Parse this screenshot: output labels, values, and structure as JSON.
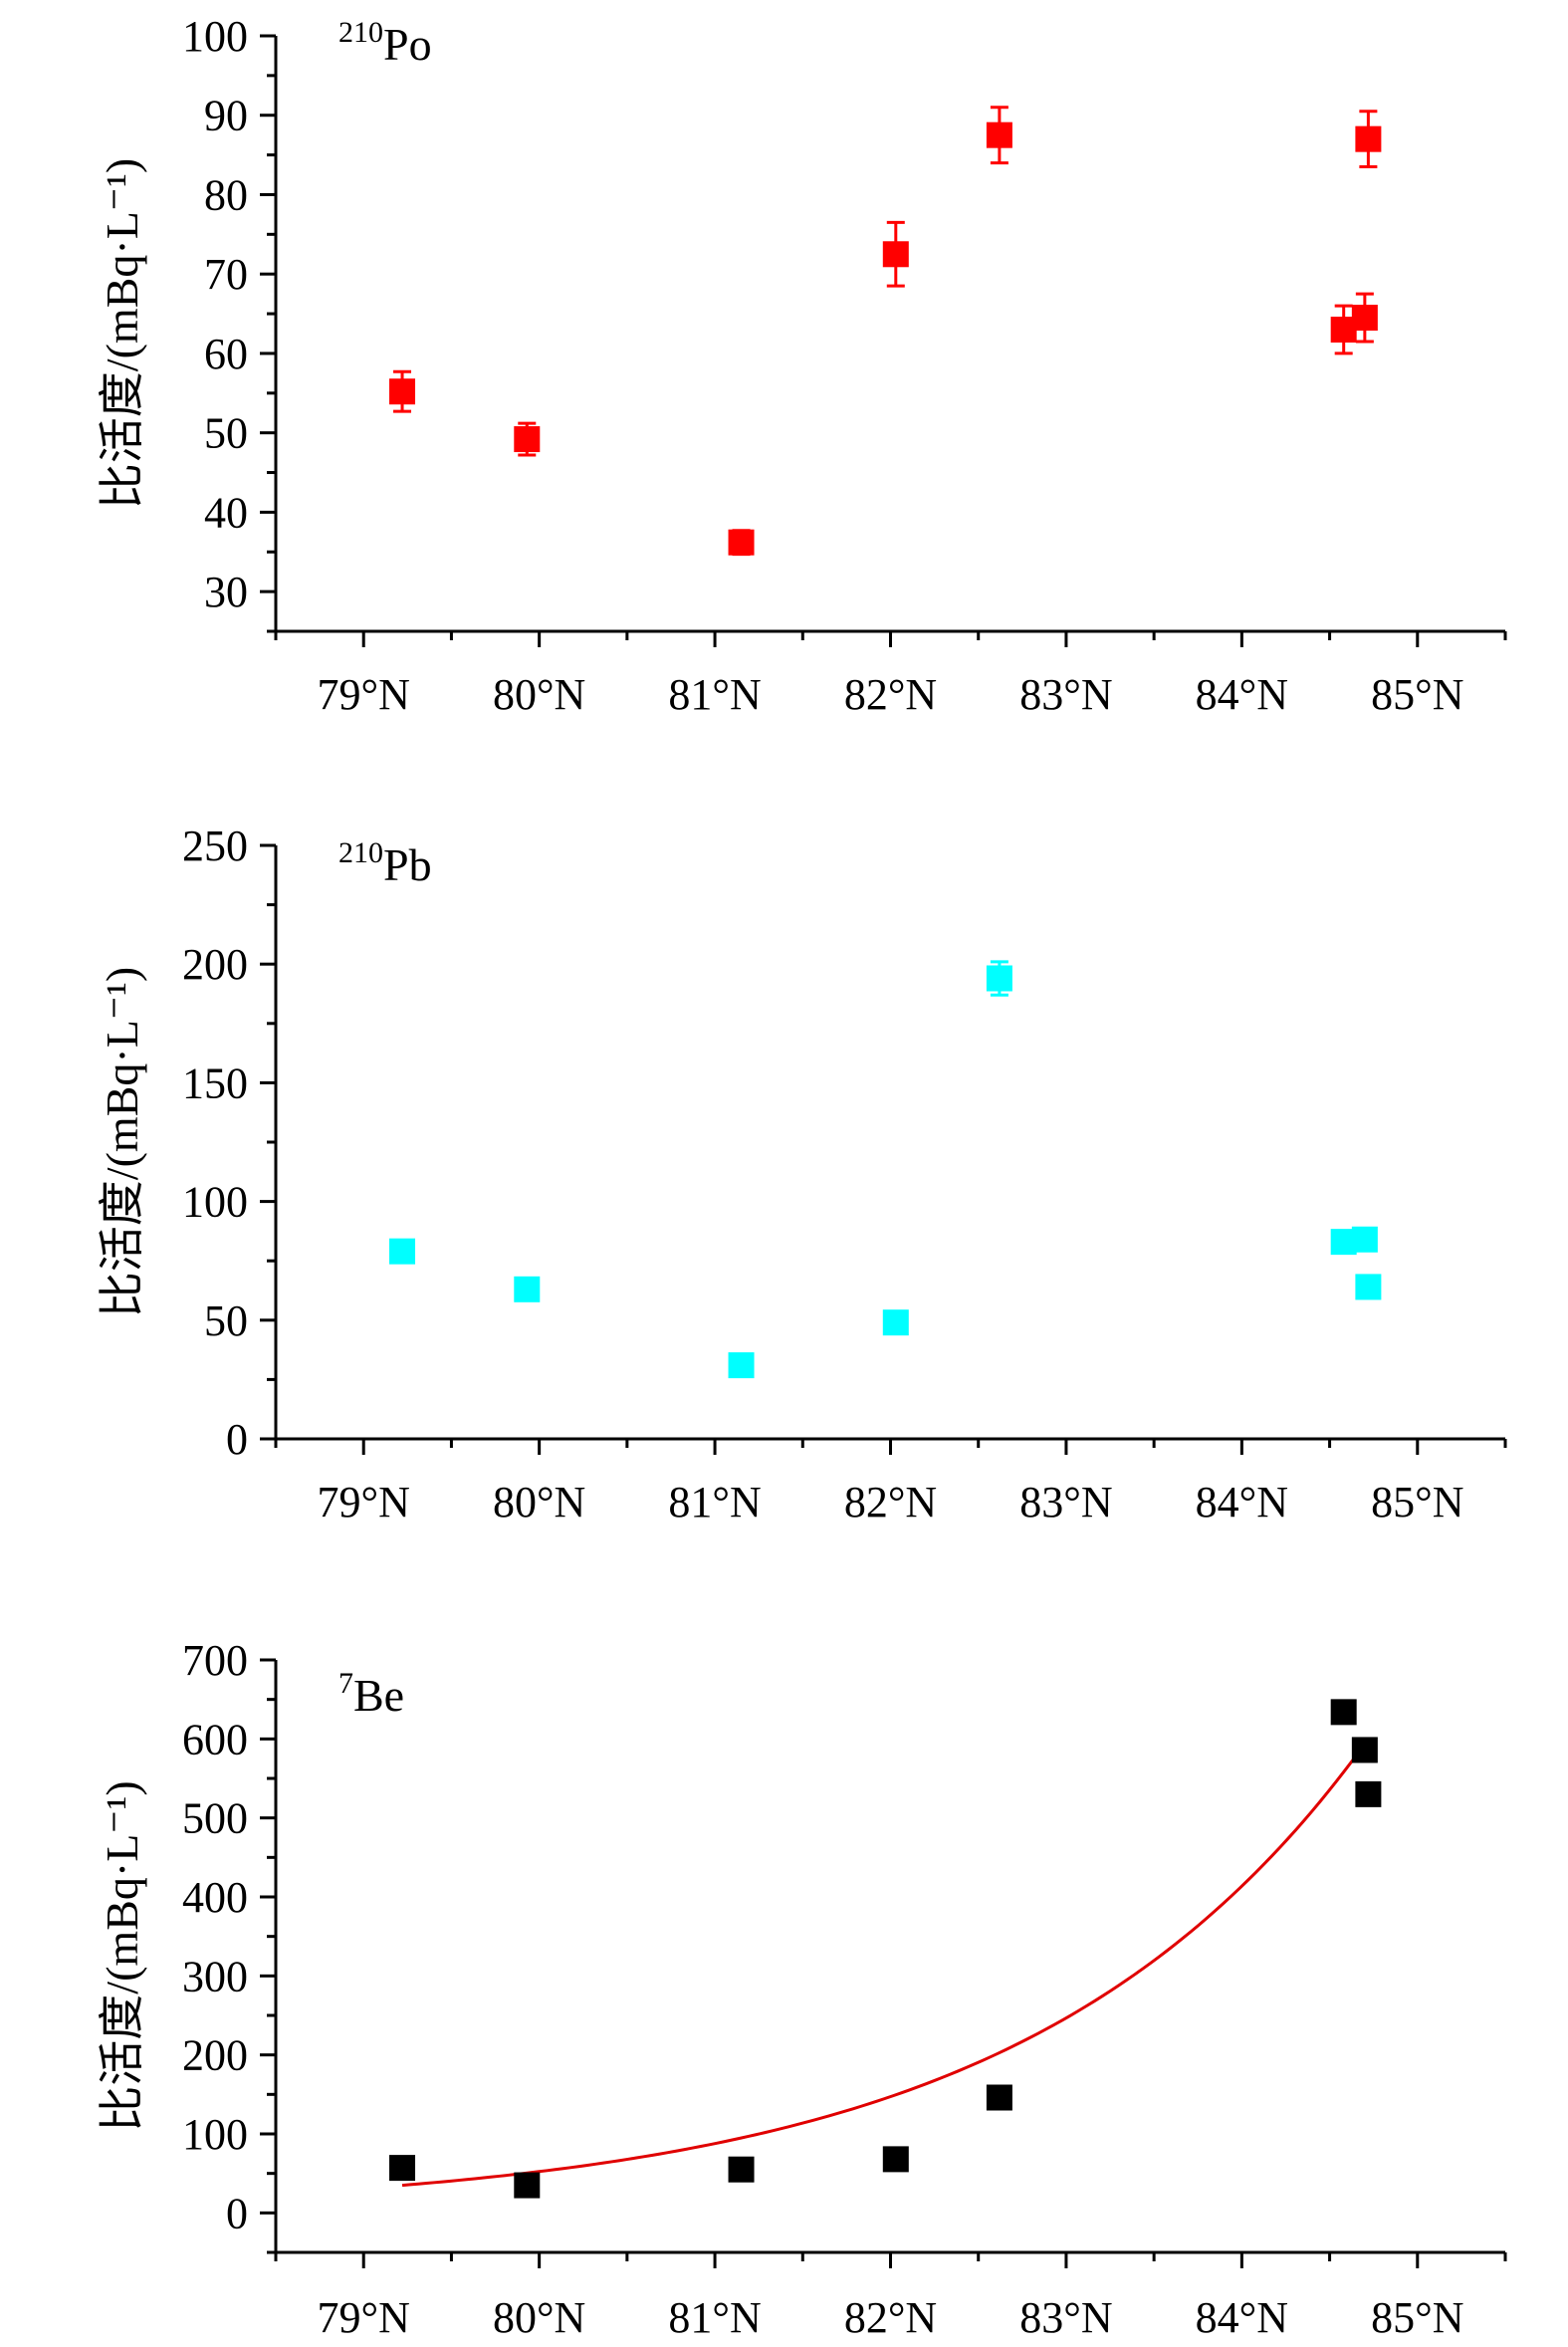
{
  "chart_data": [
    {
      "type": "scatter",
      "label_mass": "210",
      "label_symbol": "Po",
      "ylabel": "比活度/(mBq·L⁻¹)",
      "ylim": [
        25,
        100
      ],
      "yticks": [
        30,
        40,
        50,
        60,
        70,
        80,
        90,
        100
      ],
      "xlim": [
        78.5,
        85.5
      ],
      "xticks": [
        79,
        80,
        81,
        82,
        83,
        84,
        85
      ],
      "xtick_labels": [
        "79°N",
        "80°N",
        "81°N",
        "82°N",
        "83°N",
        "84°N",
        "85°N"
      ],
      "marker_color": "#ff0000",
      "series": [
        {
          "points": [
            {
              "x": 79.22,
              "y": 55.2,
              "err": 2.5
            },
            {
              "x": 79.93,
              "y": 49.2,
              "err": 2.0
            },
            {
              "x": 81.15,
              "y": 36.2,
              "err": 1.5
            },
            {
              "x": 82.03,
              "y": 72.5,
              "err": 4.0
            },
            {
              "x": 82.62,
              "y": 87.5,
              "err": 3.5
            },
            {
              "x": 84.58,
              "y": 63.0,
              "err": 3.0
            },
            {
              "x": 84.7,
              "y": 64.5,
              "err": 3.0
            },
            {
              "x": 84.72,
              "y": 87.0,
              "err": 3.5
            }
          ]
        }
      ]
    },
    {
      "type": "scatter",
      "label_mass": "210",
      "label_symbol": "Pb",
      "ylabel": "比活度/(mBq·L⁻¹)",
      "ylim": [
        0,
        250
      ],
      "yticks": [
        0,
        50,
        100,
        150,
        200,
        250
      ],
      "xlim": [
        78.5,
        85.5
      ],
      "xticks": [
        79,
        80,
        81,
        82,
        83,
        84,
        85
      ],
      "xtick_labels": [
        "79°N",
        "80°N",
        "81°N",
        "82°N",
        "83°N",
        "84°N",
        "85°N"
      ],
      "marker_color": "#00ffff",
      "series": [
        {
          "points": [
            {
              "x": 79.22,
              "y": 79,
              "err": 2.5
            },
            {
              "x": 79.93,
              "y": 63,
              "err": 2.5
            },
            {
              "x": 81.15,
              "y": 31,
              "err": 2.0
            },
            {
              "x": 82.03,
              "y": 49,
              "err": 2.5
            },
            {
              "x": 82.62,
              "y": 194,
              "err": 7.0
            },
            {
              "x": 84.58,
              "y": 83,
              "err": 3.0
            },
            {
              "x": 84.7,
              "y": 84,
              "err": 3.0
            },
            {
              "x": 84.72,
              "y": 64,
              "err": 2.5
            }
          ]
        }
      ]
    },
    {
      "type": "scatter",
      "label_mass": "7",
      "label_symbol": "Be",
      "ylabel": "比活度/(mBq·L⁻¹)",
      "ylim": [
        -50,
        700
      ],
      "yticks": [
        0,
        100,
        200,
        300,
        400,
        500,
        600,
        700
      ],
      "xlim": [
        78.5,
        85.5
      ],
      "xticks": [
        79,
        80,
        81,
        82,
        83,
        84,
        85
      ],
      "xtick_labels": [
        "79°N",
        "80°N",
        "81°N",
        "82°N",
        "83°N",
        "84°N",
        "85°N"
      ],
      "marker_color": "#000000",
      "series": [
        {
          "points": [
            {
              "x": 79.22,
              "y": 57
            },
            {
              "x": 79.93,
              "y": 35
            },
            {
              "x": 81.15,
              "y": 55
            },
            {
              "x": 82.03,
              "y": 68
            },
            {
              "x": 82.62,
              "y": 146
            },
            {
              "x": 84.58,
              "y": 634
            },
            {
              "x": 84.7,
              "y": 586
            },
            {
              "x": 84.72,
              "y": 530
            }
          ]
        }
      ],
      "fit": {
        "color": "#e00000",
        "model": "exponential",
        "x_range": [
          79.22,
          84.72
        ],
        "points": [
          [
            79.22,
            35
          ],
          [
            84.72,
            600
          ]
        ]
      }
    }
  ]
}
